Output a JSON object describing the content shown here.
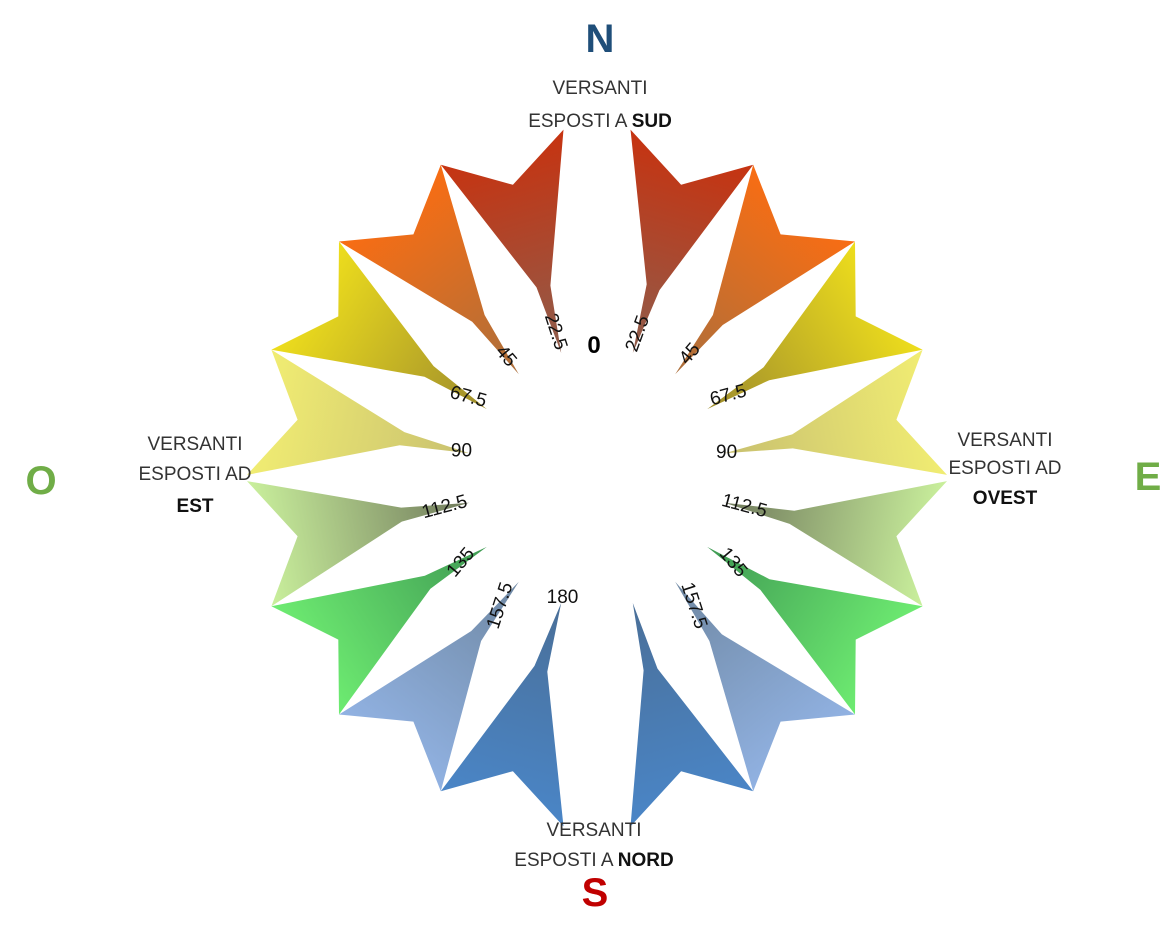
{
  "cardinals": {
    "north": {
      "label": "N",
      "color": "#1f4e79"
    },
    "south": {
      "label": "S",
      "color": "#c00000"
    },
    "east": {
      "label": "E",
      "color": "#70ad47"
    },
    "west": {
      "label": "O",
      "color": "#70ad47"
    }
  },
  "slopes": {
    "top": {
      "line1": "VERSANTI",
      "line2_prefix": "ESPOSTI A ",
      "line2_bold": "SUD"
    },
    "bottom": {
      "line1": "VERSANTI",
      "line2_prefix": "ESPOSTI A ",
      "line2_bold": "NORD"
    },
    "left": {
      "line1": "VERSANTI",
      "line2": "ESPOSTI AD",
      "line3_bold": "EST"
    },
    "right": {
      "line1": "VERSANTI",
      "line2": "ESPOSTI AD",
      "line3_bold": "OVEST"
    }
  },
  "zero_label": "0",
  "sectors": [
    {
      "id": "sector-ne-1",
      "label": "22.5",
      "tip_color": "#8f5d4c",
      "tail_color": "#c8320f"
    },
    {
      "id": "sector-ne-2",
      "label": "45",
      "tip_color": "#ab6f3c",
      "tail_color": "#fb6d12"
    },
    {
      "id": "sector-ne-3",
      "label": "67.5",
      "tip_color": "#9e8c2c",
      "tail_color": "#f0e01c"
    },
    {
      "id": "sector-e",
      "label": "90",
      "tip_color": "#c8c070",
      "tail_color": "#f2ee72"
    },
    {
      "id": "sector-se-1",
      "label": "112.5",
      "tip_color": "#707a5c",
      "tail_color": "#ccf39e"
    },
    {
      "id": "sector-se-2",
      "label": "135",
      "tip_color": "#3f9a53",
      "tail_color": "#6fee72"
    },
    {
      "id": "sector-se-3",
      "label": "157.5",
      "tip_color": "#6f88a3",
      "tail_color": "#92b3e4"
    },
    {
      "id": "sector-s-e",
      "label": "",
      "tip_color": "#4a6f98",
      "tail_color": "#4a86c8"
    },
    {
      "id": "sector-s-w",
      "label": "180",
      "tip_color": "#4a6f98",
      "tail_color": "#4a86c8"
    },
    {
      "id": "sector-sw-3",
      "label": "157.5",
      "tip_color": "#6f88a3",
      "tail_color": "#92b3e4"
    },
    {
      "id": "sector-sw-2",
      "label": "135",
      "tip_color": "#3f9a53",
      "tail_color": "#6fee72"
    },
    {
      "id": "sector-sw-1",
      "label": "112.5",
      "tip_color": "#707a5c",
      "tail_color": "#ccf39e"
    },
    {
      "id": "sector-w",
      "label": "90",
      "tip_color": "#c8c070",
      "tail_color": "#f2ee72"
    },
    {
      "id": "sector-nw-3",
      "label": "67.5",
      "tip_color": "#9e8c2c",
      "tail_color": "#f0e01c"
    },
    {
      "id": "sector-nw-2",
      "label": "45",
      "tip_color": "#ab6f3c",
      "tail_color": "#fb6d12"
    },
    {
      "id": "sector-nw-1",
      "label": "22.5",
      "tip_color": "#8f5d4c",
      "tail_color": "#c8320f"
    }
  ]
}
